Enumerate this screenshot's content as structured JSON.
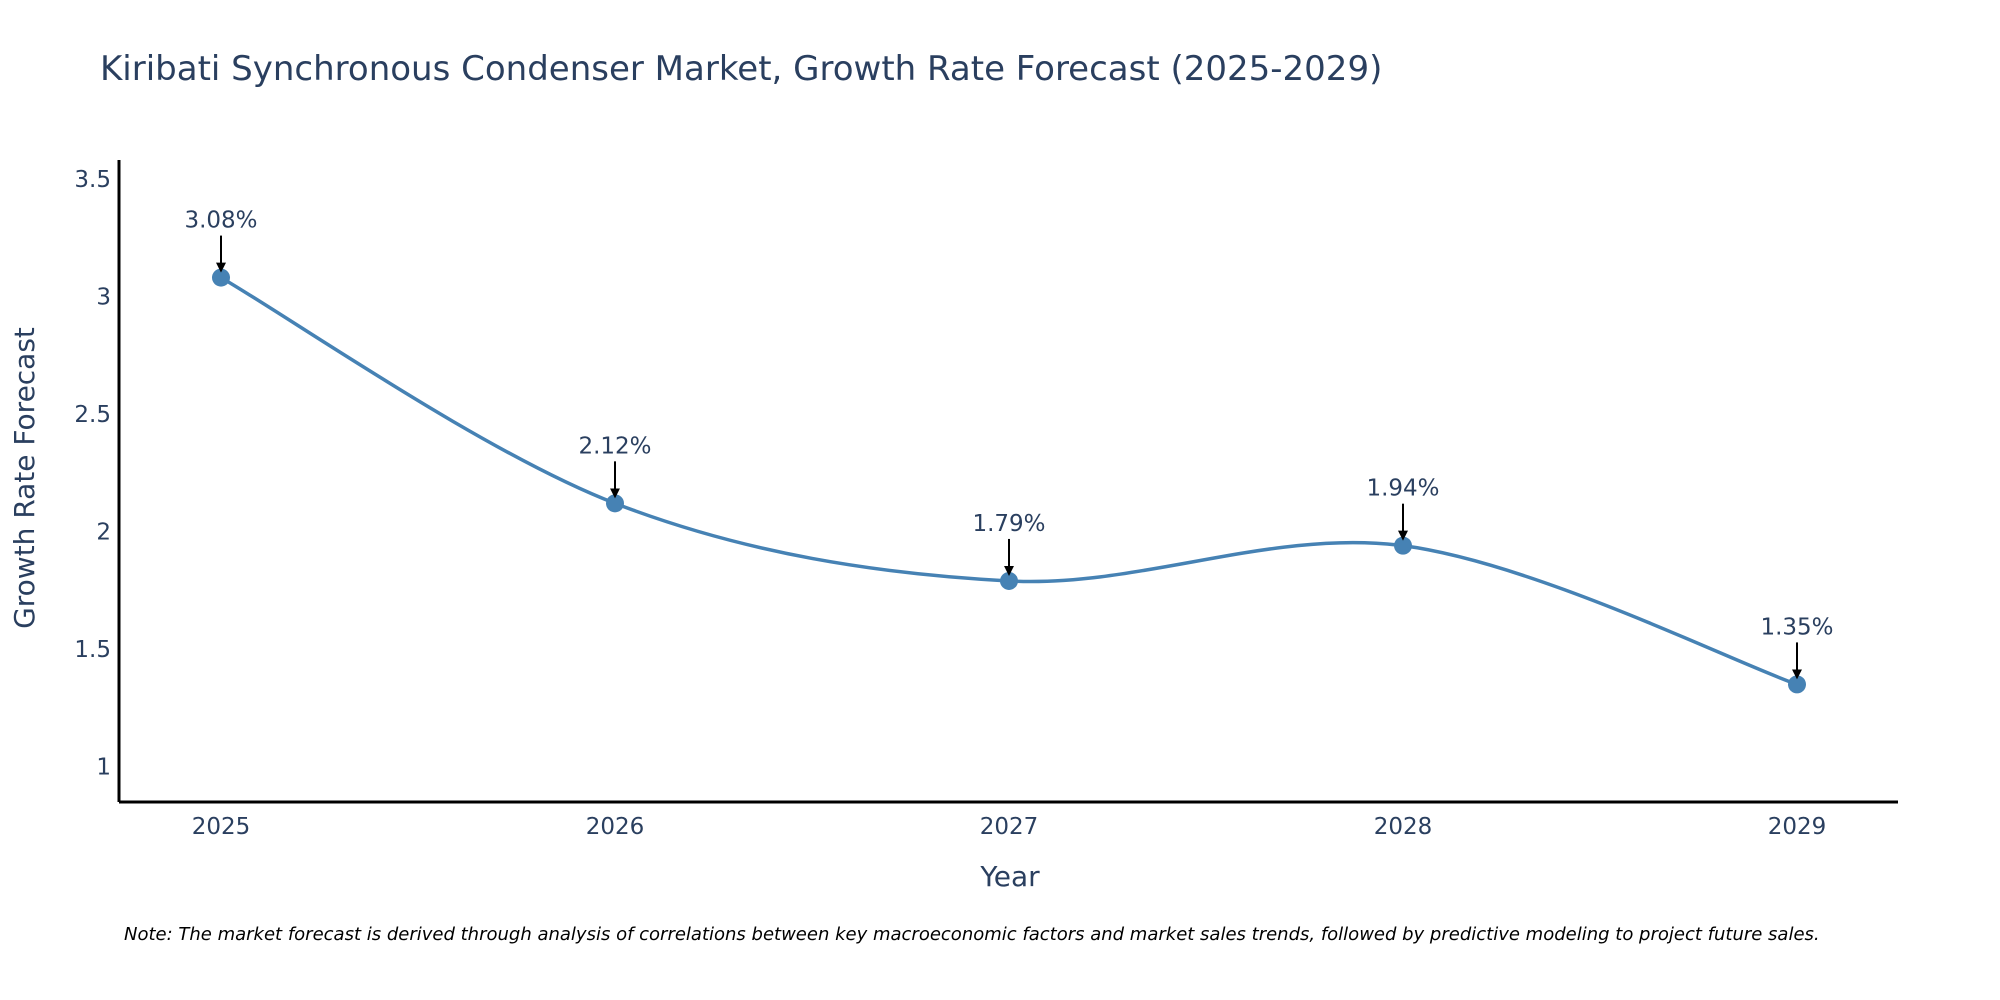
{
  "colors": {
    "line": "#4682b4",
    "marker": "#4682b4",
    "axis": "#000000",
    "text": "#2a3f5f",
    "arrow": "#000000"
  },
  "chart_data": {
    "type": "line",
    "title": "Kiribati Synchronous Condenser Market, Growth Rate Forecast (2025-2029)",
    "xlabel": "Year",
    "ylabel": "Growth Rate Forecast",
    "categories": [
      "2025",
      "2026",
      "2027",
      "2028",
      "2029"
    ],
    "series": [
      {
        "name": "Growth Rate Forecast",
        "values": [
          3.08,
          2.12,
          1.79,
          1.94,
          1.35
        ]
      }
    ],
    "data_labels": [
      "3.08%",
      "2.12%",
      "1.79%",
      "1.94%",
      "1.35%"
    ],
    "ylim": [
      0.85,
      3.58
    ],
    "yticks": [
      1,
      1.5,
      2,
      2.5,
      3,
      3.5
    ],
    "ytick_labels": [
      "1",
      "1.5",
      "2",
      "2.5",
      "3",
      "3.5"
    ],
    "line_shape": "spline",
    "grid": false,
    "legend": "none",
    "note": "Note: The market forecast is derived through analysis of correlations between key macroeconomic factors and market sales trends, followed by predictive modeling to project future sales."
  }
}
